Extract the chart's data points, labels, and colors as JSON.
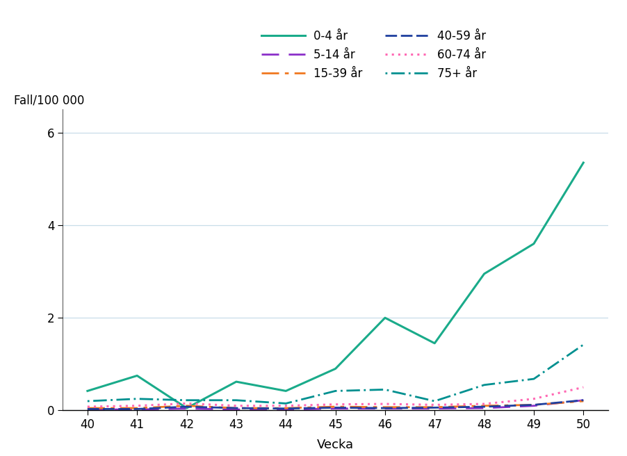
{
  "weeks": [
    40,
    41,
    42,
    43,
    44,
    45,
    46,
    47,
    48,
    49,
    50
  ],
  "series": {
    "0-4 år": {
      "values": [
        0.42,
        0.75,
        0.05,
        0.62,
        0.42,
        0.9,
        2.0,
        1.45,
        2.95,
        3.6,
        5.35
      ],
      "color": "#1aab8a",
      "lw": 2.2
    },
    "5-14 år": {
      "values": [
        0.02,
        0.02,
        0.04,
        0.02,
        0.02,
        0.04,
        0.04,
        0.04,
        0.05,
        0.1,
        0.22
      ],
      "color": "#8b2fc9",
      "lw": 2.0
    },
    "15-39 år": {
      "values": [
        0.05,
        0.05,
        0.1,
        0.05,
        0.05,
        0.08,
        0.07,
        0.07,
        0.1,
        0.12,
        0.2
      ],
      "color": "#f07820",
      "lw": 2.0
    },
    "40-59 år": {
      "values": [
        0.03,
        0.03,
        0.08,
        0.05,
        0.04,
        0.06,
        0.05,
        0.06,
        0.08,
        0.12,
        0.22
      ],
      "color": "#1e3f9e",
      "lw": 2.0
    },
    "60-74 år": {
      "values": [
        0.08,
        0.1,
        0.15,
        0.1,
        0.1,
        0.13,
        0.14,
        0.12,
        0.14,
        0.25,
        0.5
      ],
      "color": "#ff69b4",
      "lw": 2.2
    },
    "75+ år": {
      "values": [
        0.2,
        0.25,
        0.22,
        0.22,
        0.15,
        0.42,
        0.45,
        0.2,
        0.55,
        0.68,
        1.42
      ],
      "color": "#1aab8a",
      "lw": 2.0
    }
  },
  "xlabel": "Vecka",
  "ylabel": "Fall/100 000",
  "ylim": [
    0,
    6.5
  ],
  "yticks": [
    0,
    2,
    4,
    6
  ],
  "xticks": [
    40,
    41,
    42,
    43,
    44,
    45,
    46,
    47,
    48,
    49,
    50
  ],
  "grid_color": "#c8dde8",
  "background_color": "#ffffff",
  "font_color": "#000000",
  "legend_col1": [
    "0-4 år",
    "15-39 år",
    "60-74 år"
  ],
  "legend_col2": [
    "5-14 år",
    "40-59 år",
    "75+ år"
  ]
}
